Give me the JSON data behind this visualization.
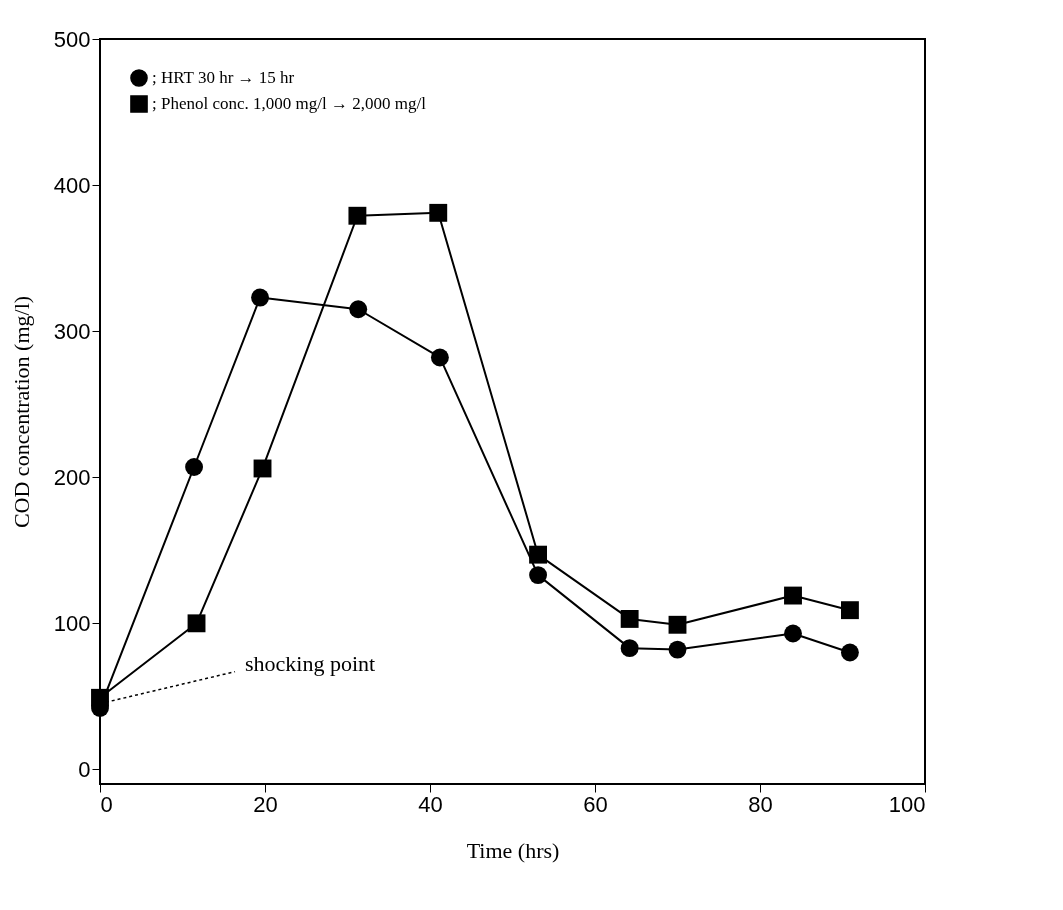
{
  "chart_data": {
    "type": "line",
    "xlabel": "Time (hrs)",
    "ylabel": "COD concentration (mg/l)",
    "xlim": [
      0,
      100
    ],
    "xticks": [
      0,
      20,
      40,
      60,
      80,
      100
    ],
    "ylim": [
      -10,
      500
    ],
    "yticks": [
      0,
      100,
      200,
      300,
      400,
      500
    ],
    "legend": "top left",
    "grid": false,
    "line_style": "solid",
    "series": [
      {
        "name": "; HRT 30 hr → 15 hr",
        "color": "#000000",
        "marker": "circle",
        "x": [
          0,
          11.4,
          19.4,
          31.3,
          41.2,
          53.1,
          64.2,
          70,
          84,
          90.9
        ],
        "values": [
          42,
          207,
          323,
          315,
          282,
          133,
          83,
          82,
          93,
          80
        ]
      },
      {
        "name": "; Phenol conc. 1,000 mg/l → 2,000 mg/l",
        "color": "#000000",
        "marker": "square",
        "x": [
          0,
          11.7,
          19.7,
          31.2,
          41,
          53.1,
          64.2,
          70,
          84,
          90.9
        ],
        "values": [
          49,
          100,
          206,
          379,
          381,
          147,
          103,
          99,
          119,
          109
        ]
      }
    ],
    "annotations": [
      {
        "text": "shocking point",
        "x": 0,
        "y": 45
      }
    ]
  }
}
